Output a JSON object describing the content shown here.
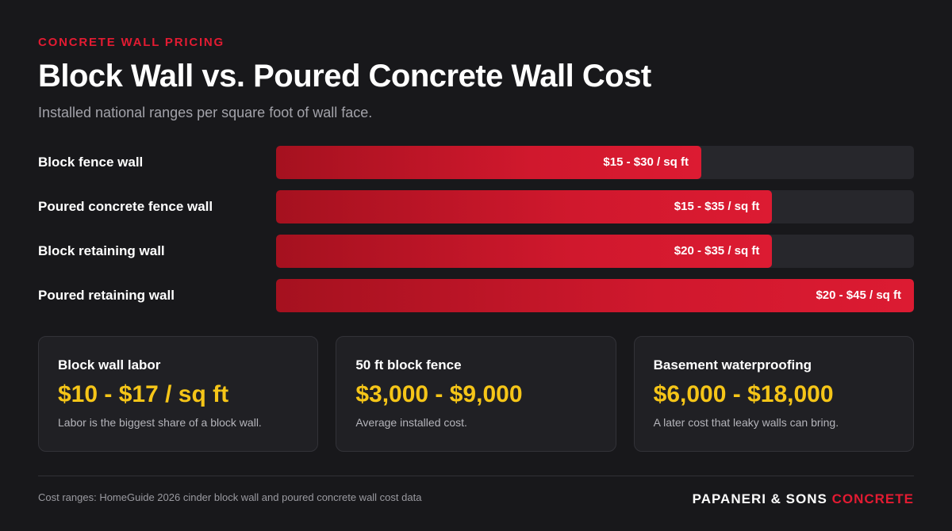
{
  "header": {
    "eyebrow": "CONCRETE WALL PRICING",
    "title": "Block Wall vs. Poured Concrete Wall Cost",
    "subtitle": "Installed national ranges per square foot of wall face."
  },
  "chart_data": {
    "type": "bar",
    "orientation": "horizontal",
    "unit": "$ / sq ft",
    "xlim": [
      0,
      45
    ],
    "categories": [
      "Block fence wall",
      "Poured concrete fence wall",
      "Block retaining wall",
      "Poured retaining wall"
    ],
    "ranges": [
      [
        15,
        30
      ],
      [
        15,
        35
      ],
      [
        20,
        35
      ],
      [
        20,
        45
      ]
    ],
    "values": [
      30,
      35,
      35,
      45
    ],
    "value_labels": [
      "$15 - $30 / sq ft",
      "$15 - $35 / sq ft",
      "$20 - $35 / sq ft",
      "$20 - $45 / sq ft"
    ],
    "colors": {
      "bar": "#d0182d",
      "track": "#27272c"
    },
    "grid": false
  },
  "cards": [
    {
      "title": "Block wall labor",
      "value": "$10 - $17 / sq ft",
      "note": "Labor is the biggest share of a block wall."
    },
    {
      "title": "50 ft block fence",
      "value": "$3,000 - $9,000",
      "note": "Average installed cost."
    },
    {
      "title": "Basement waterproofing",
      "value": "$6,000 - $18,000",
      "note": "A later cost that leaky walls can bring."
    }
  ],
  "footer": {
    "source": "Cost ranges: HomeGuide 2026 cinder block wall and poured concrete wall cost data",
    "brand_main": "PAPANERI & SONS",
    "brand_accent": "CONCRETE"
  },
  "colors": {
    "accent_red": "#e31b32",
    "value_yellow": "#f5c518",
    "background": "#18181b"
  }
}
